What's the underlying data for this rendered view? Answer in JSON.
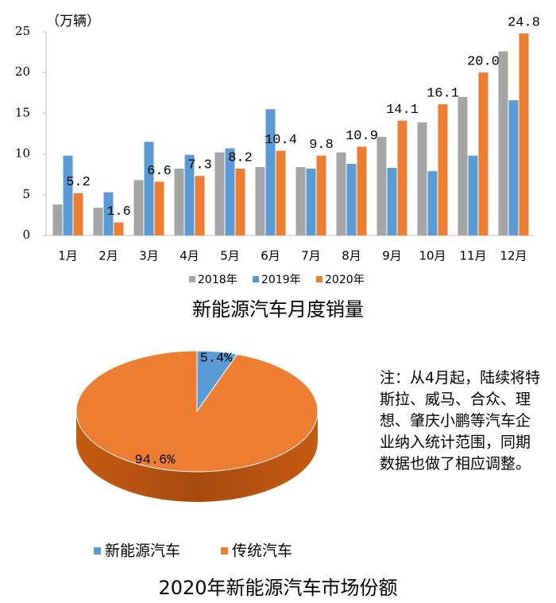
{
  "chart_data": [
    {
      "type": "bar",
      "title": "新能源汽车月度销量",
      "y_label": "（万辆）",
      "categories": [
        "1月",
        "2月",
        "3月",
        "4月",
        "5月",
        "6月",
        "7月",
        "8月",
        "9月",
        "10月",
        "11月",
        "12月"
      ],
      "series": [
        {
          "name": "2018年",
          "color": "#a5a5a5",
          "values": [
            3.8,
            3.4,
            6.8,
            8.2,
            10.2,
            8.4,
            8.4,
            10.2,
            12.1,
            13.9,
            17.0,
            22.6
          ]
        },
        {
          "name": "2019年",
          "color": "#5b9bd5",
          "values": [
            9.8,
            5.3,
            11.5,
            9.9,
            10.7,
            15.5,
            8.2,
            8.8,
            8.3,
            7.9,
            9.8,
            16.6
          ]
        },
        {
          "name": "2020年",
          "color": "#ed7d31",
          "values": [
            5.2,
            1.6,
            6.6,
            7.3,
            8.2,
            10.4,
            9.8,
            10.9,
            14.1,
            16.1,
            20.0,
            24.8
          ],
          "value_labels": [
            "5.2",
            "1.6",
            "6.6",
            "7.3",
            "8.2",
            "10.4",
            "9.8",
            "10.9",
            "14.1",
            "16.1",
            "20.0",
            "24.8"
          ]
        }
      ],
      "ylim": [
        0,
        25
      ],
      "yticks": [
        0,
        5,
        10,
        15,
        20,
        25
      ],
      "grid": false,
      "legend": "bottom"
    },
    {
      "type": "pie",
      "title": "2020年新能源汽车市场份额",
      "categories": [
        "新能源汽车",
        "传统汽车"
      ],
      "values": [
        5.4,
        94.6
      ],
      "value_labels": [
        "5.4%",
        "94.6%"
      ],
      "colors": [
        "#5b9bd5",
        "#ed7d31"
      ],
      "legend": "bottom",
      "annotation": "注：从4月起，陆续将特斯拉、威马、合众、理想、肇庆小鹏等汽车企业纳入统计范围，同期数据也做了相应调整。"
    }
  ]
}
